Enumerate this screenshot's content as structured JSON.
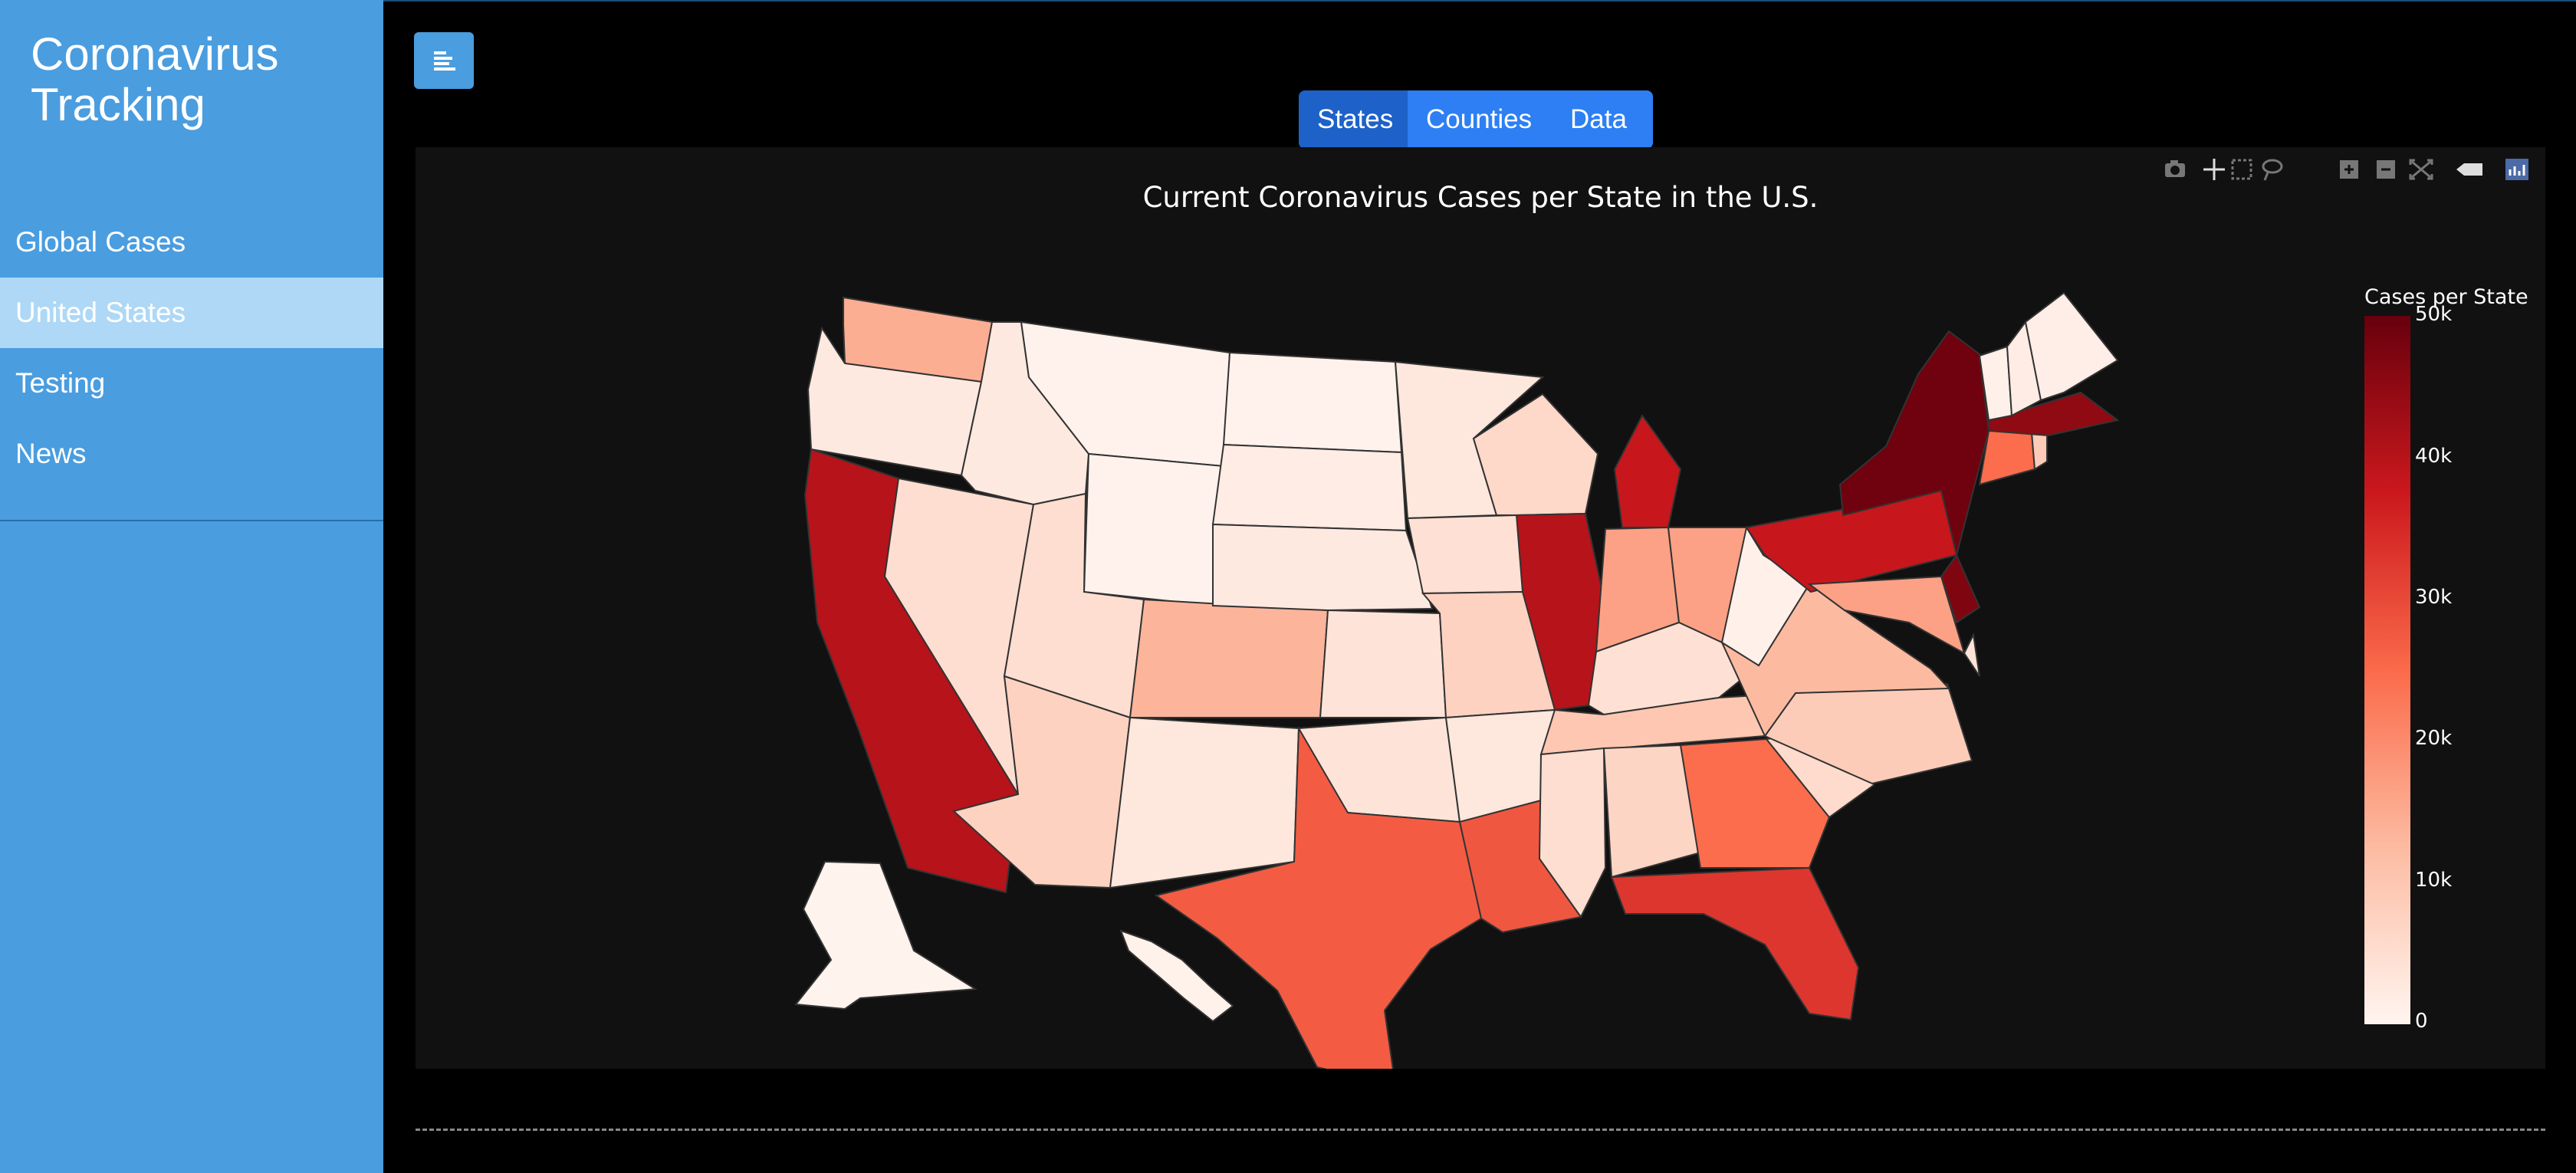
{
  "sidebar": {
    "title": "Coronavirus Tracking",
    "items": [
      {
        "label": "Global Cases",
        "active": false
      },
      {
        "label": "United States",
        "active": true
      },
      {
        "label": "Testing",
        "active": false
      },
      {
        "label": "News",
        "active": false
      }
    ]
  },
  "tabs": [
    {
      "label": "States",
      "active": true
    },
    {
      "label": "Counties",
      "active": false
    },
    {
      "label": "Data",
      "active": false
    }
  ],
  "modebar_icons": [
    "camera-icon",
    "pan-icon",
    "box-select-icon",
    "lasso-icon",
    "zoom-in-icon",
    "zoom-out-icon",
    "reset-icon",
    "hover-icon",
    "plotly-logo-icon"
  ],
  "colors": {
    "sidebar": "#4a9ddf",
    "active_item": "#aed8f5",
    "tab": "#2d7ff3",
    "tab_active": "#1e62c9",
    "plot_bg": "#111111"
  },
  "chart_data": {
    "type": "choropleth",
    "title": "Current Coronavirus Cases per State in the U.S.",
    "colorbar_title": "Cases per State",
    "colorscale": "Reds",
    "range": [
      0,
      50000
    ],
    "colorbar_ticks": [
      "0",
      "10k",
      "20k",
      "30k",
      "40k",
      "50k"
    ],
    "states": [
      {
        "code": "WA",
        "value": 12000
      },
      {
        "code": "OR",
        "value": 2000
      },
      {
        "code": "CA",
        "value": 40000
      },
      {
        "code": "NV",
        "value": 4000
      },
      {
        "code": "ID",
        "value": 2000
      },
      {
        "code": "MT",
        "value": 500
      },
      {
        "code": "WY",
        "value": 500
      },
      {
        "code": "UT",
        "value": 4000
      },
      {
        "code": "AZ",
        "value": 6000
      },
      {
        "code": "NM",
        "value": 2500
      },
      {
        "code": "CO",
        "value": 11000
      },
      {
        "code": "ND",
        "value": 500
      },
      {
        "code": "SD",
        "value": 1500
      },
      {
        "code": "NE",
        "value": 2000
      },
      {
        "code": "KS",
        "value": 3000
      },
      {
        "code": "OK",
        "value": 3000
      },
      {
        "code": "TX",
        "value": 25000
      },
      {
        "code": "MN",
        "value": 2500
      },
      {
        "code": "IA",
        "value": 3500
      },
      {
        "code": "MO",
        "value": 6000
      },
      {
        "code": "AR",
        "value": 2500
      },
      {
        "code": "LA",
        "value": 26000
      },
      {
        "code": "WI",
        "value": 5000
      },
      {
        "code": "IL",
        "value": 40000
      },
      {
        "code": "MI",
        "value": 38000
      },
      {
        "code": "IN",
        "value": 14000
      },
      {
        "code": "OH",
        "value": 14000
      },
      {
        "code": "KY",
        "value": 3500
      },
      {
        "code": "TN",
        "value": 8000
      },
      {
        "code": "MS",
        "value": 4000
      },
      {
        "code": "AL",
        "value": 5500
      },
      {
        "code": "GA",
        "value": 22000
      },
      {
        "code": "FL",
        "value": 32000
      },
      {
        "code": "SC",
        "value": 4500
      },
      {
        "code": "NC",
        "value": 7000
      },
      {
        "code": "VA",
        "value": 10000
      },
      {
        "code": "WV",
        "value": 800
      },
      {
        "code": "PA",
        "value": 38000
      },
      {
        "code": "NY",
        "value": 49000
      },
      {
        "code": "NJ",
        "value": 47000
      },
      {
        "code": "MD",
        "value": 14000
      },
      {
        "code": "DE",
        "value": 3000
      },
      {
        "code": "CT",
        "value": 22000
      },
      {
        "code": "RI",
        "value": 7000
      },
      {
        "code": "MA",
        "value": 45000
      },
      {
        "code": "VT",
        "value": 900
      },
      {
        "code": "NH",
        "value": 1500
      },
      {
        "code": "ME",
        "value": 1200
      },
      {
        "code": "AK",
        "value": 300
      },
      {
        "code": "HI",
        "value": 600
      }
    ]
  }
}
